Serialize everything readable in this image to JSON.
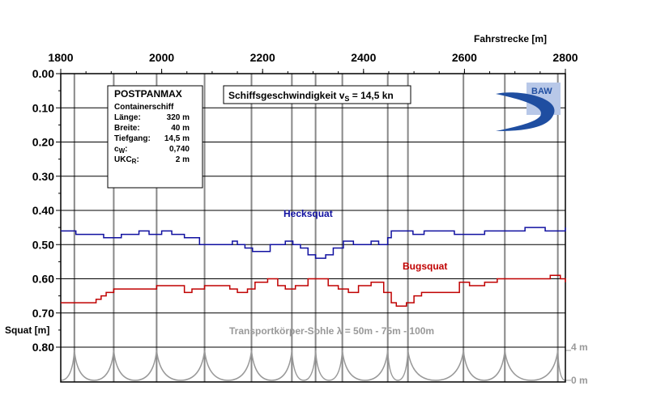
{
  "chart_data": {
    "type": "line",
    "x_axis": {
      "label": "Fahrstrecke [m]",
      "range": [
        1800,
        2800
      ],
      "ticks": [
        "1800",
        "2000",
        "2200",
        "2400",
        "2600",
        "2800"
      ],
      "position": "top"
    },
    "y_axis": {
      "label": "Squat [m]",
      "range": [
        0.0,
        0.8
      ],
      "inverted": true,
      "ticks": [
        "0.00",
        "0.10",
        "0.20",
        "0.30",
        "0.40",
        "0.50",
        "0.60",
        "0.70",
        "0.80"
      ]
    },
    "vertical_gridlines_x": [
      1827,
      1905,
      1990,
      2085,
      2178,
      2258,
      2305,
      2358,
      2448,
      2488,
      2598,
      2680,
      2785
    ],
    "series": [
      {
        "name": "Hecksquat",
        "color": "#1010a0",
        "points": [
          [
            1800,
            0.46
          ],
          [
            1815,
            0.46
          ],
          [
            1830,
            0.47
          ],
          [
            1870,
            0.47
          ],
          [
            1885,
            0.48
          ],
          [
            1905,
            0.48
          ],
          [
            1920,
            0.47
          ],
          [
            1940,
            0.47
          ],
          [
            1955,
            0.46
          ],
          [
            1975,
            0.47
          ],
          [
            2000,
            0.46
          ],
          [
            2020,
            0.47
          ],
          [
            2045,
            0.48
          ],
          [
            2060,
            0.48
          ],
          [
            2075,
            0.5
          ],
          [
            2120,
            0.5
          ],
          [
            2140,
            0.49
          ],
          [
            2150,
            0.5
          ],
          [
            2165,
            0.51
          ],
          [
            2180,
            0.52
          ],
          [
            2195,
            0.52
          ],
          [
            2215,
            0.5
          ],
          [
            2245,
            0.49
          ],
          [
            2260,
            0.5
          ],
          [
            2275,
            0.51
          ],
          [
            2290,
            0.53
          ],
          [
            2305,
            0.54
          ],
          [
            2325,
            0.53
          ],
          [
            2340,
            0.51
          ],
          [
            2360,
            0.49
          ],
          [
            2380,
            0.5
          ],
          [
            2395,
            0.5
          ],
          [
            2415,
            0.49
          ],
          [
            2430,
            0.5
          ],
          [
            2448,
            0.48
          ],
          [
            2455,
            0.46
          ],
          [
            2480,
            0.46
          ],
          [
            2498,
            0.47
          ],
          [
            2520,
            0.46
          ],
          [
            2560,
            0.46
          ],
          [
            2580,
            0.47
          ],
          [
            2610,
            0.47
          ],
          [
            2640,
            0.46
          ],
          [
            2690,
            0.46
          ],
          [
            2720,
            0.45
          ],
          [
            2760,
            0.46
          ],
          [
            2800,
            0.45
          ]
        ]
      },
      {
        "name": "Bugsquat",
        "color": "#c00000",
        "points": [
          [
            1800,
            0.67
          ],
          [
            1850,
            0.67
          ],
          [
            1870,
            0.66
          ],
          [
            1880,
            0.65
          ],
          [
            1890,
            0.64
          ],
          [
            1905,
            0.63
          ],
          [
            1950,
            0.63
          ],
          [
            1990,
            0.62
          ],
          [
            2030,
            0.62
          ],
          [
            2045,
            0.64
          ],
          [
            2060,
            0.63
          ],
          [
            2085,
            0.62
          ],
          [
            2120,
            0.62
          ],
          [
            2135,
            0.63
          ],
          [
            2150,
            0.64
          ],
          [
            2170,
            0.63
          ],
          [
            2185,
            0.61
          ],
          [
            2210,
            0.6
          ],
          [
            2230,
            0.62
          ],
          [
            2245,
            0.63
          ],
          [
            2265,
            0.62
          ],
          [
            2290,
            0.6
          ],
          [
            2310,
            0.6
          ],
          [
            2330,
            0.62
          ],
          [
            2350,
            0.63
          ],
          [
            2370,
            0.64
          ],
          [
            2390,
            0.62
          ],
          [
            2415,
            0.61
          ],
          [
            2440,
            0.64
          ],
          [
            2455,
            0.67
          ],
          [
            2465,
            0.68
          ],
          [
            2485,
            0.67
          ],
          [
            2500,
            0.65
          ],
          [
            2515,
            0.64
          ],
          [
            2540,
            0.64
          ],
          [
            2570,
            0.64
          ],
          [
            2590,
            0.61
          ],
          [
            2610,
            0.62
          ],
          [
            2640,
            0.61
          ],
          [
            2665,
            0.6
          ],
          [
            2700,
            0.6
          ],
          [
            2740,
            0.6
          ],
          [
            2770,
            0.59
          ],
          [
            2790,
            0.6
          ],
          [
            2800,
            0.61
          ]
        ]
      }
    ],
    "series_labels": {
      "Hecksquat": "Hecksquat",
      "Bugsquat": "Bugsquat"
    },
    "annotation": "Schiffsgeschwindigkeit v",
    "annotation_sub": "S",
    "annotation_value": " = 14,5 kn",
    "sohle": {
      "label": "Transportkörper-Sohle λ = 50m - 75m - 100m",
      "right_tick_top": "4 m",
      "right_tick_bottom": "0 m",
      "crests_x": [
        1827,
        1905,
        1990,
        2085,
        2178,
        2258,
        2305,
        2358,
        2448,
        2488,
        2598,
        2680,
        2785
      ],
      "height_m": 4,
      "color": "#999999"
    }
  },
  "info_box": {
    "title": "POSTPANMAX",
    "subtitle": "Containerschiff",
    "rows": [
      {
        "label": "Länge:",
        "value": "320 m"
      },
      {
        "label": "Breite:",
        "value": "40 m"
      },
      {
        "label": "Tiefgang:",
        "value": "14,5 m"
      },
      {
        "label": "c",
        "label_sub": "W",
        "label_suffix": ":",
        "value": "0,740"
      },
      {
        "label": "UKC",
        "label_sub": "R",
        "label_suffix": ":",
        "value": "2 m"
      }
    ]
  },
  "logo": {
    "text": "BAW",
    "color": "#1f4ea1"
  }
}
